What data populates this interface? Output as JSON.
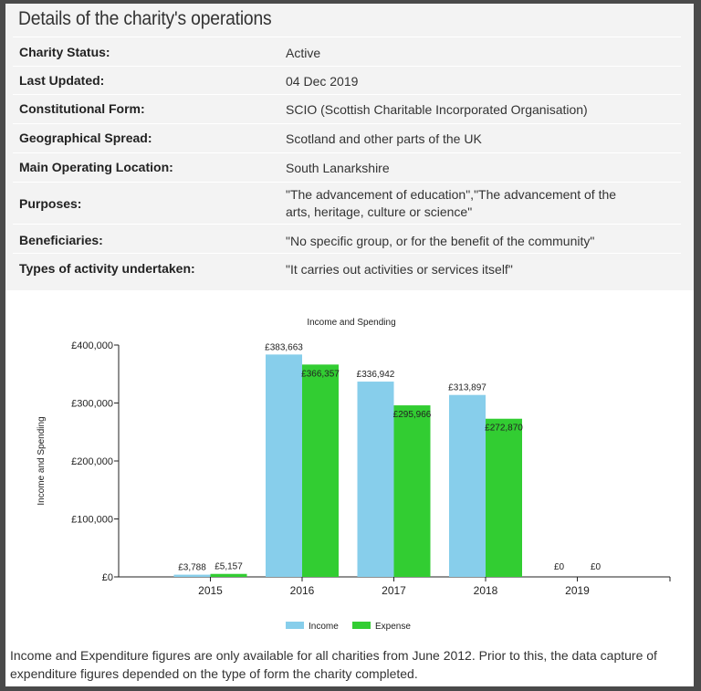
{
  "title": "Details of the charity's operations",
  "details": [
    {
      "label": "Charity Status:",
      "value": "Active"
    },
    {
      "label": "Last Updated:",
      "value": "04 Dec 2019"
    },
    {
      "label": "Constitutional Form:",
      "value": "SCIO (Scottish Charitable Incorporated Organisation)"
    },
    {
      "label": "Geographical Spread:",
      "value": "Scotland and other parts of the UK"
    },
    {
      "label": "Main Operating Location:",
      "value": "South Lanarkshire"
    },
    {
      "label": "Purposes:",
      "value": "\"The advancement of education\",\"The advancement of the arts, heritage, culture or science\""
    },
    {
      "label": "Beneficiaries:",
      "value": "\"No specific group, or for the benefit of the community\""
    },
    {
      "label": "Types of activity undertaken:",
      "value": "\"It carries out activities or services itself\""
    }
  ],
  "chart_data": {
    "type": "bar",
    "title": "Income and Spending",
    "ylabel": "Income and Spending",
    "xlabel": "",
    "categories": [
      "2015",
      "2016",
      "2017",
      "2018",
      "2019"
    ],
    "series": [
      {
        "name": "Income",
        "color": "#87ceeb",
        "values": [
          3788,
          383663,
          336942,
          313897,
          0
        ],
        "labels": [
          "£3,788",
          "£383,663",
          "£336,942",
          "£313,897",
          "£0"
        ]
      },
      {
        "name": "Expense",
        "color": "#32cd32",
        "values": [
          5157,
          366357,
          295966,
          272870,
          0
        ],
        "labels": [
          "£5,157",
          "£366,357",
          "£295,966",
          "£272,870",
          "£0"
        ]
      }
    ],
    "ylim": [
      0,
      400000
    ],
    "yticks": [
      0,
      100000,
      200000,
      300000,
      400000
    ],
    "ytick_labels": [
      "£0",
      "£100,000",
      "£200,000",
      "£300,000",
      "£400,000"
    ],
    "grid": false,
    "legend": "bottom"
  },
  "footnote": "Income and Expenditure figures are only available for all charities from June 2012. Prior to this, the data capture of expenditure figures depended on the type of form the charity completed."
}
